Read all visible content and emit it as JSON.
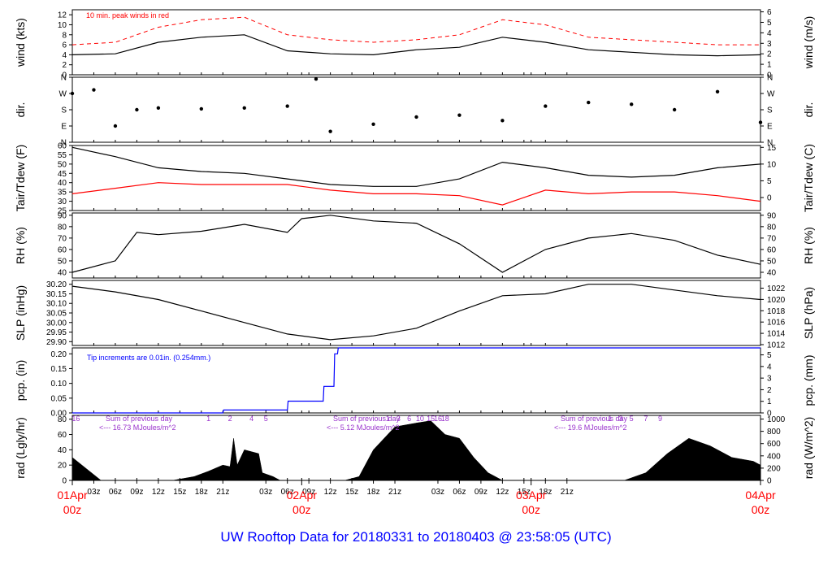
{
  "title": "UW Rooftop Data for 20180331  to  20180403 @ 23:58:05  (UTC)",
  "colors": {
    "red": "#ff0000",
    "blue": "#0000ff",
    "purple": "#9933cc",
    "title": "#0000ff",
    "line": "#000000"
  },
  "chart_data": [
    {
      "id": "wind",
      "type": "line",
      "ylabel_left": "wind (kts)",
      "ylabel_right": "wind (m/s)",
      "left_ticks": [
        "0",
        "2",
        "4",
        "6",
        "8",
        "10",
        "12"
      ],
      "ylim": [
        0,
        13
      ],
      "right_ticks": [
        "0",
        "1",
        "2",
        "3",
        "4",
        "5",
        "6"
      ],
      "annotation": "10 min. peak winds in red",
      "series": [
        {
          "name": "wind speed",
          "color": "#000000",
          "x": [
            0,
            6,
            12,
            18,
            24,
            30,
            36,
            42,
            48,
            54,
            60,
            66,
            72,
            78,
            84,
            90,
            96
          ],
          "values": [
            4,
            4.2,
            6.5,
            7.5,
            8,
            4.8,
            4.2,
            4,
            5,
            5.5,
            7.5,
            6.5,
            5,
            4.5,
            4,
            3.8,
            4
          ]
        },
        {
          "name": "10 min. peak winds",
          "color": "#ff0000",
          "x": [
            0,
            6,
            12,
            18,
            24,
            30,
            36,
            42,
            48,
            54,
            60,
            66,
            72,
            78,
            84,
            90,
            96
          ],
          "values": [
            6,
            6.5,
            9.5,
            11,
            11.5,
            8,
            7,
            6.5,
            7,
            8,
            11,
            10,
            7.5,
            7,
            6.5,
            6,
            6
          ]
        }
      ]
    },
    {
      "id": "dir",
      "type": "scatter",
      "ylabel_left": "dir.",
      "ylabel_right": "dir.",
      "left_ticks": [
        "N",
        "E",
        "S",
        "W",
        "N"
      ],
      "right_ticks": [
        "N",
        "E",
        "S",
        "W",
        "N"
      ],
      "ylim": [
        0,
        360
      ],
      "series": [
        {
          "name": "wind direction (deg)",
          "color": "#000000",
          "x": [
            0,
            3,
            6,
            9,
            12,
            18,
            24,
            30,
            34,
            36,
            42,
            48,
            54,
            60,
            66,
            72,
            78,
            84,
            90,
            96
          ],
          "values": [
            270,
            290,
            90,
            180,
            190,
            185,
            190,
            200,
            350,
            60,
            100,
            140,
            150,
            120,
            200,
            220,
            210,
            180,
            280,
            110
          ]
        }
      ]
    },
    {
      "id": "temp",
      "type": "line",
      "ylabel_left": "Tair/Tdew (F)",
      "ylabel_right": "Tair/Tdew (C)",
      "left_ticks": [
        "25",
        "30",
        "35",
        "40",
        "45",
        "50",
        "55",
        "60"
      ],
      "ylim": [
        25,
        60
      ],
      "right_ticks": [
        "0",
        "5",
        "10",
        "15"
      ],
      "series": [
        {
          "name": "Tair",
          "color": "#000000",
          "x": [
            0,
            6,
            12,
            18,
            24,
            30,
            36,
            42,
            48,
            54,
            60,
            66,
            72,
            78,
            84,
            90,
            96
          ],
          "values": [
            59,
            54,
            48,
            46,
            45,
            42,
            39,
            38,
            38,
            42,
            51,
            48,
            44,
            43,
            44,
            48,
            50
          ]
        },
        {
          "name": "Tdew",
          "color": "#ff0000",
          "x": [
            0,
            6,
            12,
            18,
            24,
            30,
            36,
            42,
            48,
            54,
            60,
            66,
            72,
            78,
            84,
            90,
            96
          ],
          "values": [
            34,
            37,
            40,
            39,
            39,
            39,
            36,
            34,
            34,
            33,
            28,
            36,
            34,
            35,
            35,
            33,
            30
          ]
        }
      ]
    },
    {
      "id": "rh",
      "type": "line",
      "ylabel_left": "RH (%)",
      "ylabel_right": "RH (%)",
      "left_ticks": [
        "40",
        "50",
        "60",
        "70",
        "80",
        "90"
      ],
      "ylim": [
        35,
        92
      ],
      "right_ticks": [
        "40",
        "50",
        "60",
        "70",
        "80",
        "90"
      ],
      "series": [
        {
          "name": "RH",
          "color": "#000000",
          "x": [
            0,
            6,
            9,
            12,
            18,
            24,
            30,
            32,
            36,
            42,
            48,
            54,
            60,
            66,
            72,
            78,
            84,
            90,
            96
          ],
          "values": [
            40,
            50,
            75,
            73,
            76,
            82,
            75,
            87,
            90,
            85,
            83,
            65,
            40,
            60,
            70,
            74,
            68,
            55,
            47
          ]
        }
      ]
    },
    {
      "id": "slp",
      "type": "line",
      "ylabel_left": "SLP (inHg)",
      "ylabel_right": "SLP (hPa)",
      "left_ticks": [
        "29.90",
        "29.95",
        "30.00",
        "30.05",
        "30.10",
        "30.15",
        "30.20"
      ],
      "ylim": [
        29.88,
        30.22
      ],
      "right_ticks": [
        "1012",
        "1014",
        "1016",
        "1018",
        "1020",
        "1022"
      ],
      "series": [
        {
          "name": "SLP",
          "color": "#000000",
          "x": [
            0,
            6,
            12,
            18,
            24,
            30,
            36,
            42,
            48,
            54,
            60,
            66,
            72,
            78,
            84,
            90,
            96
          ],
          "values": [
            30.19,
            30.16,
            30.12,
            30.06,
            30.0,
            29.94,
            29.91,
            29.93,
            29.97,
            30.06,
            30.14,
            30.15,
            30.2,
            30.2,
            30.17,
            30.14,
            30.12
          ]
        }
      ]
    },
    {
      "id": "pcp",
      "type": "line",
      "ylabel_left": "pcp. (in)",
      "ylabel_right": "pcp. (mm)",
      "left_ticks": [
        "0.00",
        "0.05",
        "0.10",
        "0.15",
        "0.20"
      ],
      "ylim": [
        0,
        0.22
      ],
      "right_ticks": [
        "0",
        "1",
        "2",
        "3",
        "4",
        "5"
      ],
      "annotation": "Tip increments are 0.01in. (0.254mm.)",
      "series": [
        {
          "name": "cumulative precipitation",
          "color": "#0000ff",
          "x": [
            0,
            21,
            21.1,
            30,
            30.1,
            35,
            35.1,
            36.5,
            36.6,
            37,
            37.1,
            96
          ],
          "values": [
            0,
            0,
            0.01,
            0.01,
            0.04,
            0.04,
            0.09,
            0.09,
            0.2,
            0.2,
            0.22,
            0.22
          ]
        }
      ]
    },
    {
      "id": "rad",
      "type": "area",
      "ylabel_left": "rad (Lgly/hr)",
      "ylabel_right": "rad (W/m^2)",
      "left_ticks": [
        "0",
        "20",
        "40",
        "60",
        "80"
      ],
      "ylim": [
        0,
        85
      ],
      "right_ticks": [
        "0",
        "200",
        "400",
        "600",
        "800",
        "1000"
      ],
      "day_sums": [
        {
          "label": "Sum of previous day",
          "value": "<--- 16.73 MJoules/m^2"
        },
        {
          "label": "Sum of previous day",
          "value": "<--- 5.12 MJoules/m^2"
        },
        {
          "label": "Sum of previous day",
          "value": "<--- 19.6 MJoules/m^2"
        }
      ],
      "hour_marks": [
        {
          "x": 0.5,
          "label": "16"
        },
        {
          "x": 19,
          "label": "1"
        },
        {
          "x": 22,
          "label": "2"
        },
        {
          "x": 25,
          "label": "4"
        },
        {
          "x": 27,
          "label": "5"
        },
        {
          "x": 44,
          "label": "1"
        },
        {
          "x": 45.5,
          "label": "3"
        },
        {
          "x": 47,
          "label": "6"
        },
        {
          "x": 48.5,
          "label": "10"
        },
        {
          "x": 50,
          "label": "15"
        },
        {
          "x": 51,
          "label": "16"
        },
        {
          "x": 52,
          "label": "18"
        },
        {
          "x": 75,
          "label": "1"
        },
        {
          "x": 76.5,
          "label": "3"
        },
        {
          "x": 78,
          "label": "5"
        },
        {
          "x": 80,
          "label": "7"
        },
        {
          "x": 82,
          "label": "9"
        }
      ],
      "series": [
        {
          "name": "solar radiation",
          "color": "#000000",
          "x": [
            0,
            2,
            4,
            14,
            17,
            19,
            21,
            22,
            22.5,
            23,
            24,
            26,
            26.5,
            28,
            29,
            38,
            40,
            42,
            45,
            48,
            50,
            52,
            54,
            56,
            58,
            60,
            62,
            77,
            80,
            83,
            86,
            89,
            92,
            95,
            96
          ],
          "values": [
            30,
            15,
            0,
            0,
            5,
            12,
            20,
            18,
            55,
            20,
            40,
            35,
            10,
            5,
            0,
            0,
            5,
            40,
            70,
            75,
            78,
            60,
            55,
            30,
            10,
            0,
            0,
            0,
            10,
            35,
            55,
            45,
            30,
            25,
            20
          ]
        }
      ]
    }
  ],
  "x_axis": {
    "range_hours": [
      0,
      96
    ],
    "ticks": [
      {
        "hour": 3,
        "label": "03z"
      },
      {
        "hour": 6,
        "label": "06z"
      },
      {
        "hour": 9,
        "label": "09z"
      },
      {
        "hour": 12,
        "label": "12z"
      },
      {
        "hour": 15,
        "label": "15z"
      },
      {
        "hour": 18,
        "label": "18z"
      },
      {
        "hour": 21,
        "label": "21z"
      },
      {
        "hour": 27,
        "label": "03z"
      },
      {
        "hour": 30,
        "label": "06z"
      },
      {
        "hour": 33,
        "label": "09z"
      },
      {
        "hour": 36,
        "label": "12z"
      },
      {
        "hour": 39,
        "label": "15z"
      },
      {
        "hour": 42,
        "label": "18z"
      },
      {
        "hour": 45,
        "label": "21z"
      },
      {
        "hour": 51,
        "label": "03z"
      },
      {
        "hour": 54,
        "label": "06z"
      },
      {
        "hour": 57,
        "label": "09z"
      },
      {
        "hour": 60,
        "label": "12z"
      },
      {
        "hour": 63,
        "label": "15z"
      },
      {
        "hour": 66,
        "label": "18z"
      },
      {
        "hour": 69,
        "label": "21z"
      }
    ],
    "day_labels": [
      {
        "hour": 0,
        "day": "01Apr",
        "zone": "00z"
      },
      {
        "hour": 32,
        "day": "02Apr",
        "zone": "00z"
      },
      {
        "hour": 64,
        "day": "03Apr",
        "zone": "00z"
      },
      {
        "hour": 96,
        "day": "04Apr",
        "zone": "00z"
      }
    ]
  }
}
